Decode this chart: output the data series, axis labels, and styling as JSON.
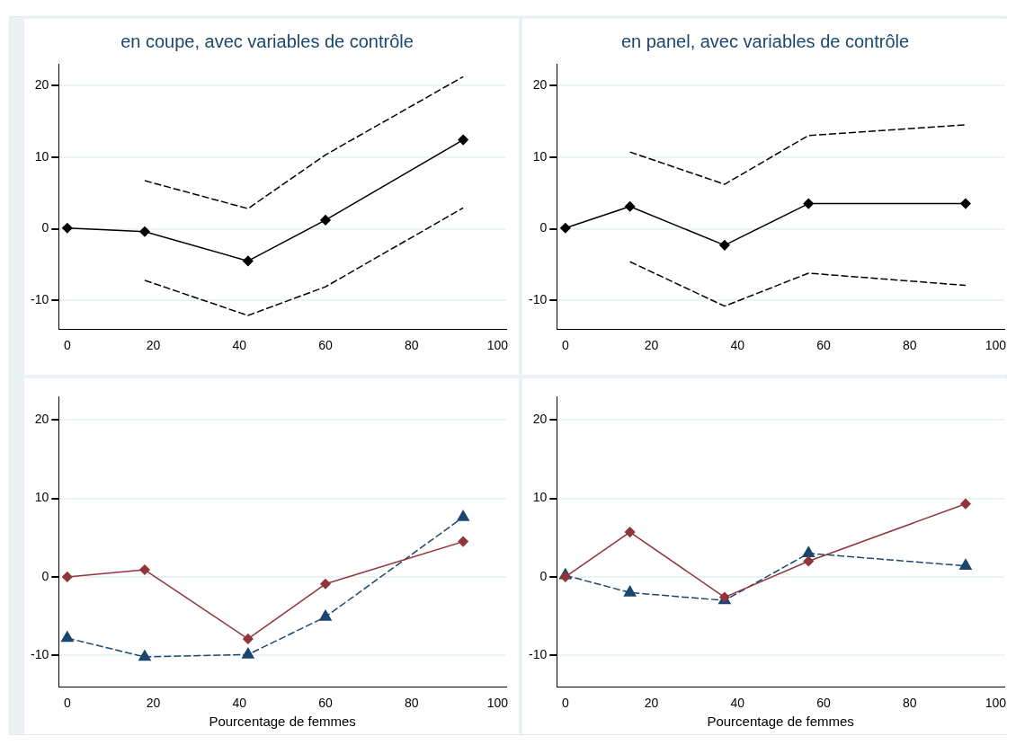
{
  "chart_data": [
    {
      "type": "line",
      "title": "en coupe, avec variables de contrôle",
      "x": [
        0,
        18,
        42,
        60,
        92
      ],
      "xlim": [
        -2,
        102
      ],
      "xticks": [
        0,
        20,
        40,
        60,
        80,
        100
      ],
      "ylim": [
        -14,
        23
      ],
      "yticks": [
        -10,
        0,
        10,
        20
      ],
      "grid": "y",
      "series": [
        {
          "color": "#000000",
          "values": [
            0.1,
            -0.4,
            -4.5,
            1.2,
            12.4
          ],
          "marker": "diamond",
          "line_style": "solid"
        },
        {
          "color": "#000000",
          "values": [
            null,
            6.7,
            2.8,
            10.3,
            21.2
          ],
          "marker": "none",
          "line_style": "dashed"
        },
        {
          "color": "#000000",
          "values": [
            null,
            -7.2,
            -12.1,
            -8.1,
            2.9
          ],
          "marker": "none",
          "line_style": "dashed"
        }
      ]
    },
    {
      "type": "line",
      "title": "en panel, avec variables de contrôle",
      "x": [
        0,
        15,
        37,
        56.5,
        93
      ],
      "xlim": [
        -2,
        102
      ],
      "xticks": [
        0,
        20,
        40,
        60,
        80,
        100
      ],
      "ylim": [
        -14,
        23
      ],
      "yticks": [
        -10,
        0,
        10,
        20
      ],
      "grid": "y",
      "series": [
        {
          "color": "#000000",
          "values": [
            0.1,
            3.1,
            -2.3,
            3.5,
            3.5
          ],
          "marker": "diamond",
          "line_style": "solid"
        },
        {
          "color": "#000000",
          "values": [
            null,
            10.7,
            6.2,
            13,
            14.5
          ],
          "marker": "none",
          "line_style": "dashed"
        },
        {
          "color": "#000000",
          "values": [
            null,
            -4.6,
            -10.8,
            -6.2,
            -7.9
          ],
          "marker": "none",
          "line_style": "dashed"
        }
      ]
    },
    {
      "type": "line",
      "xlabel": "Pourcentage de femmes",
      "x": [
        0,
        18,
        42,
        60,
        92
      ],
      "xlim": [
        -2,
        102
      ],
      "xticks": [
        0,
        20,
        40,
        60,
        80,
        100
      ],
      "ylim": [
        -14,
        23
      ],
      "yticks": [
        -10,
        0,
        10,
        20
      ],
      "grid": "y",
      "series": [
        {
          "color": "#90353b",
          "values": [
            0,
            0.9,
            -7.9,
            -0.9,
            4.5
          ],
          "marker": "diamond",
          "line_style": "solid"
        },
        {
          "color": "#1a476f",
          "values": [
            -7.8,
            -10.2,
            -9.9,
            -5.1,
            7.6
          ],
          "marker": "triangle",
          "line_style": "dashed"
        }
      ]
    },
    {
      "type": "line",
      "xlabel": "Pourcentage de femmes",
      "x": [
        0,
        15,
        37,
        56.5,
        93
      ],
      "xlim": [
        -2,
        102
      ],
      "xticks": [
        0,
        20,
        40,
        60,
        80,
        100
      ],
      "ylim": [
        -14,
        23
      ],
      "yticks": [
        -10,
        0,
        10,
        20
      ],
      "grid": "y",
      "series": [
        {
          "color": "#90353b",
          "values": [
            0,
            5.7,
            -2.6,
            2,
            9.3
          ],
          "marker": "diamond",
          "line_style": "solid"
        },
        {
          "color": "#1a476f",
          "values": [
            0.2,
            -2,
            -3,
            3,
            1.4
          ],
          "marker": "triangle",
          "line_style": "dashed"
        }
      ]
    }
  ]
}
